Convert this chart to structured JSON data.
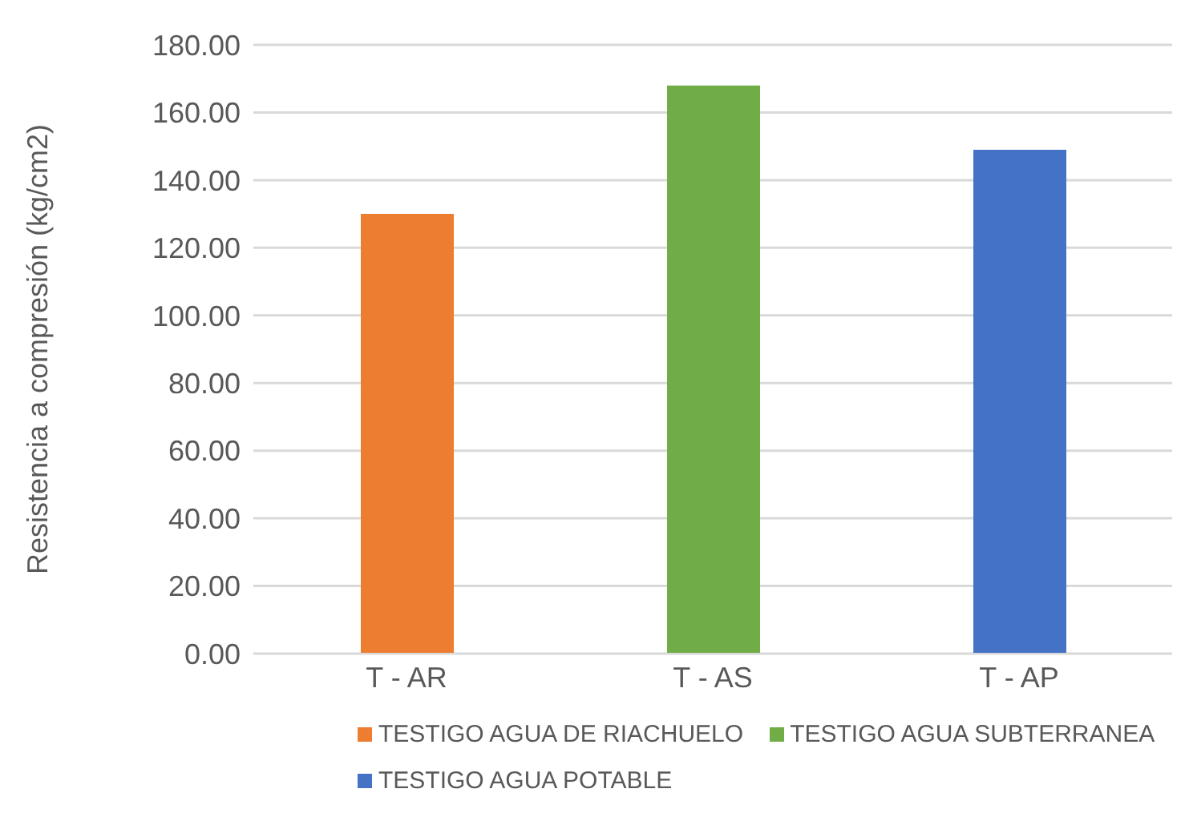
{
  "chart_data": {
    "type": "bar",
    "ylabel": "Resistencia a compresión (kg/cm2)",
    "categories": [
      "T - AR",
      "T - AS",
      "T - AP"
    ],
    "series": [
      {
        "name": "TESTIGO AGUA DE RIACHUELO",
        "color": "#ed7d31",
        "values": [
          130,
          null,
          null
        ]
      },
      {
        "name": "TESTIGO AGUA SUBTERRANEA",
        "color": "#70ad47",
        "values": [
          null,
          168,
          null
        ]
      },
      {
        "name": "TESTIGO AGUA POTABLE",
        "color": "#4472c4",
        "values": [
          null,
          null,
          149
        ]
      }
    ],
    "ylim": [
      0,
      180
    ],
    "yticks": [
      {
        "value": 0,
        "label": "0.00"
      },
      {
        "value": 20,
        "label": "20.00"
      },
      {
        "value": 40,
        "label": "40.00"
      },
      {
        "value": 60,
        "label": "60.00"
      },
      {
        "value": 80,
        "label": "80.00"
      },
      {
        "value": 100,
        "label": "100.00"
      },
      {
        "value": 120,
        "label": "120.00"
      },
      {
        "value": 140,
        "label": "140.00"
      },
      {
        "value": 160,
        "label": "160.00"
      },
      {
        "value": 180,
        "label": "180.00"
      }
    ],
    "grid": "y",
    "legend": "bottom"
  }
}
